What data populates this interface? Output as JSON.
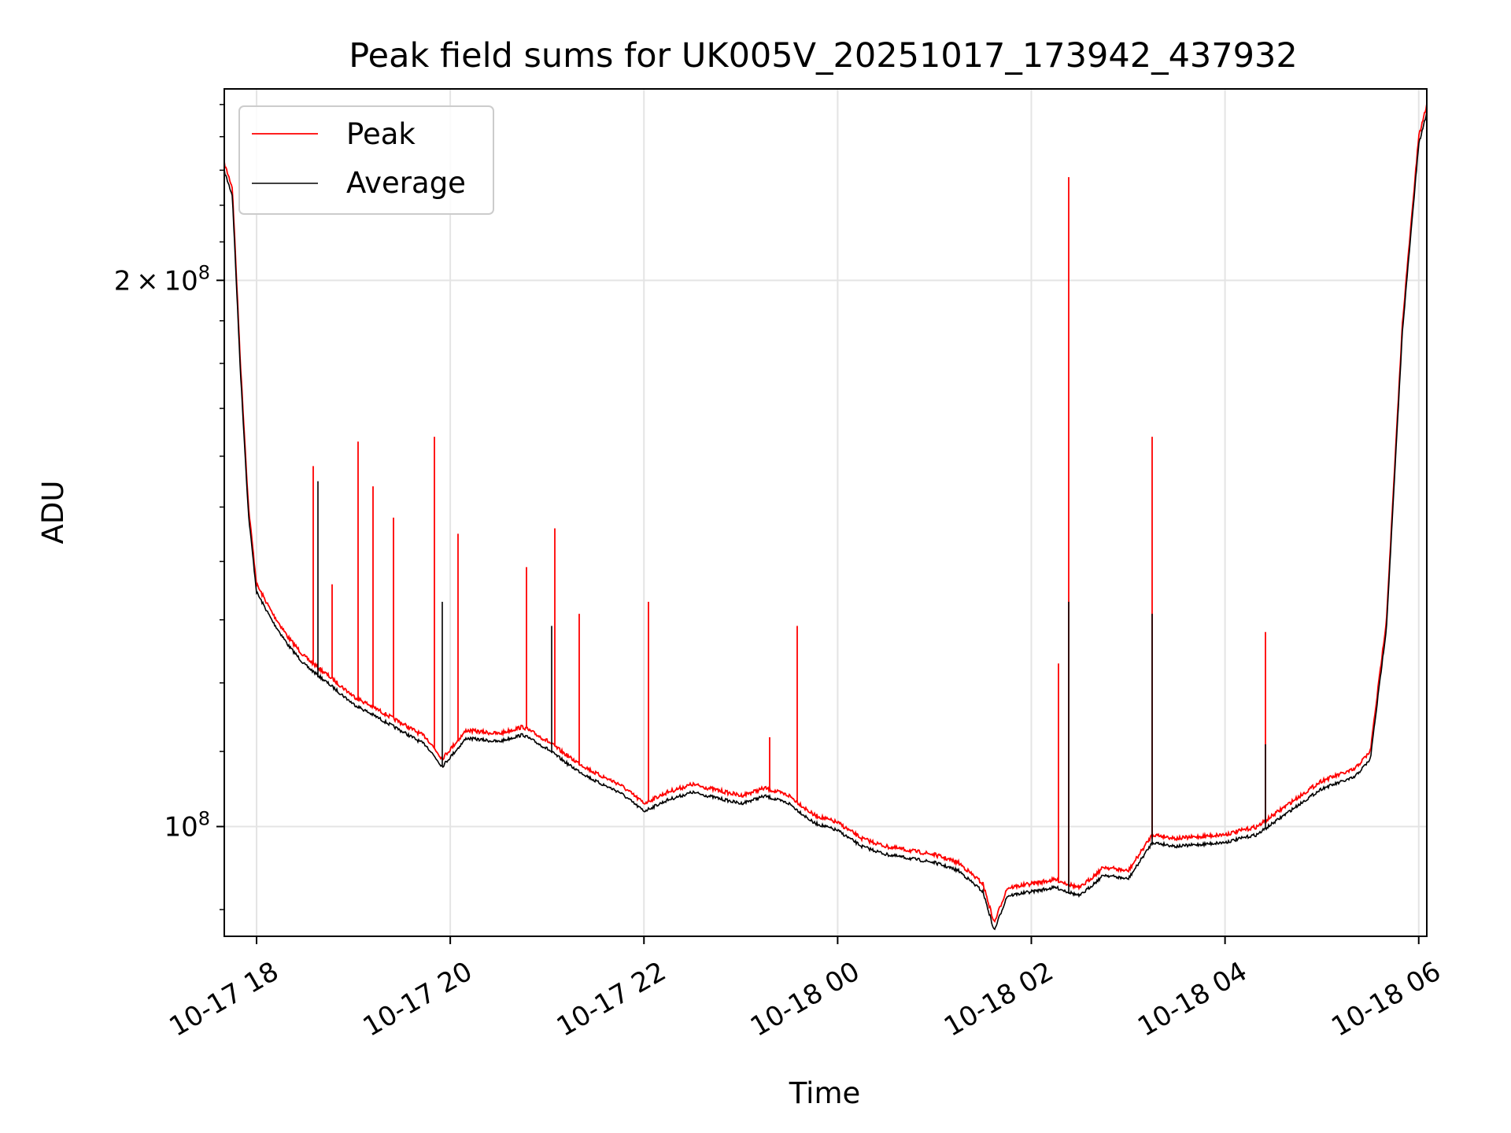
{
  "chart_data": {
    "type": "line",
    "title": "Peak field sums for UK005V_20251017_173942_437932",
    "xlabel": "Time",
    "ylabel": "ADU",
    "yscale": "log",
    "ylim": [
      87000000,
      255000000
    ],
    "xlim": [
      "2025-10-17T17:40",
      "2025-10-18T06:05"
    ],
    "x_ticks": [
      "10-17 18",
      "10-17 20",
      "10-17 22",
      "10-18 00",
      "10-18 02",
      "10-18 04",
      "10-18 06"
    ],
    "y_ticks": [
      {
        "value": 100000000,
        "mantissa": "",
        "exponent": "8"
      },
      {
        "value": 200000000,
        "mantissa": "2",
        "exponent": "8"
      }
    ],
    "grid": true,
    "legend_position": "upper-left",
    "colors": {
      "peak": "#ff0000",
      "average": "#000000",
      "grid": "#e4e4e4"
    },
    "series": [
      {
        "name": "Peak",
        "color": "#ff0000",
        "baseline": [
          [
            "2025-10-17T17:40",
            232000000
          ],
          [
            "2025-10-17T17:45",
            225000000
          ],
          [
            "2025-10-17T17:50",
            180000000
          ],
          [
            "2025-10-17T17:55",
            150000000
          ],
          [
            "2025-10-17T18:00",
            136000000
          ],
          [
            "2025-10-17T18:10",
            131000000
          ],
          [
            "2025-10-17T18:20",
            127000000
          ],
          [
            "2025-10-17T18:30",
            124000000
          ],
          [
            "2025-10-17T18:45",
            121000000
          ],
          [
            "2025-10-17T19:00",
            118000000
          ],
          [
            "2025-10-17T19:15",
            116000000
          ],
          [
            "2025-10-17T19:30",
            114000000
          ],
          [
            "2025-10-17T19:45",
            112000000
          ],
          [
            "2025-10-17T19:55",
            109000000
          ],
          [
            "2025-10-17T20:10",
            113000000
          ],
          [
            "2025-10-17T20:30",
            112500000
          ],
          [
            "2025-10-17T20:45",
            113500000
          ],
          [
            "2025-10-17T21:00",
            111500000
          ],
          [
            "2025-10-17T21:15",
            109000000
          ],
          [
            "2025-10-17T21:30",
            107000000
          ],
          [
            "2025-10-17T21:45",
            105500000
          ],
          [
            "2025-10-17T22:00",
            103000000
          ],
          [
            "2025-10-17T22:15",
            104500000
          ],
          [
            "2025-10-17T22:30",
            105500000
          ],
          [
            "2025-10-17T23:00",
            104000000
          ],
          [
            "2025-10-17T23:15",
            105000000
          ],
          [
            "2025-10-17T23:30",
            104000000
          ],
          [
            "2025-10-17T23:45",
            101500000
          ],
          [
            "2025-10-18T00:00",
            100500000
          ],
          [
            "2025-10-18T00:15",
            98500000
          ],
          [
            "2025-10-18T00:30",
            97500000
          ],
          [
            "2025-10-18T01:00",
            96500000
          ],
          [
            "2025-10-18T01:15",
            95500000
          ],
          [
            "2025-10-18T01:30",
            93000000
          ],
          [
            "2025-10-18T01:37",
            88500000
          ],
          [
            "2025-10-18T01:45",
            92500000
          ],
          [
            "2025-10-18T02:00",
            93000000
          ],
          [
            "2025-10-18T02:15",
            93500000
          ],
          [
            "2025-10-18T02:30",
            92500000
          ],
          [
            "2025-10-18T02:45",
            95000000
          ],
          [
            "2025-10-18T03:00",
            94500000
          ],
          [
            "2025-10-18T03:15",
            99000000
          ],
          [
            "2025-10-18T03:30",
            98500000
          ],
          [
            "2025-10-18T04:00",
            99000000
          ],
          [
            "2025-10-18T04:20",
            100000000
          ],
          [
            "2025-10-18T04:40",
            103000000
          ],
          [
            "2025-10-18T05:00",
            106000000
          ],
          [
            "2025-10-18T05:20",
            107500000
          ],
          [
            "2025-10-18T05:30",
            110000000
          ],
          [
            "2025-10-18T05:40",
            130000000
          ],
          [
            "2025-10-18T05:50",
            190000000
          ],
          [
            "2025-10-18T06:00",
            240000000
          ],
          [
            "2025-10-18T06:05",
            250000000
          ]
        ],
        "spikes": [
          [
            "2025-10-17T18:35",
            158000000
          ],
          [
            "2025-10-17T18:47",
            136000000
          ],
          [
            "2025-10-17T19:03",
            163000000
          ],
          [
            "2025-10-17T19:12",
            154000000
          ],
          [
            "2025-10-17T19:25",
            148000000
          ],
          [
            "2025-10-17T19:50",
            164000000
          ],
          [
            "2025-10-17T20:05",
            145000000
          ],
          [
            "2025-10-17T20:47",
            139000000
          ],
          [
            "2025-10-17T21:05",
            146000000
          ],
          [
            "2025-10-17T21:20",
            131000000
          ],
          [
            "2025-10-17T22:03",
            133000000
          ],
          [
            "2025-10-17T23:18",
            112000000
          ],
          [
            "2025-10-17T23:35",
            129000000
          ],
          [
            "2025-10-18T02:17",
            123000000
          ],
          [
            "2025-10-18T02:23",
            228000000
          ],
          [
            "2025-10-18T03:15",
            164000000
          ],
          [
            "2025-10-18T04:25",
            128000000
          ]
        ]
      },
      {
        "name": "Average",
        "color": "#000000",
        "note_offset_factor": 0.99,
        "spikes": [
          [
            "2025-10-17T18:38",
            155000000
          ],
          [
            "2025-10-17T19:55",
            133000000
          ],
          [
            "2025-10-17T21:03",
            129000000
          ],
          [
            "2025-10-18T02:23",
            133000000
          ],
          [
            "2025-10-18T03:15",
            131000000
          ],
          [
            "2025-10-18T04:25",
            111000000
          ]
        ]
      }
    ]
  }
}
